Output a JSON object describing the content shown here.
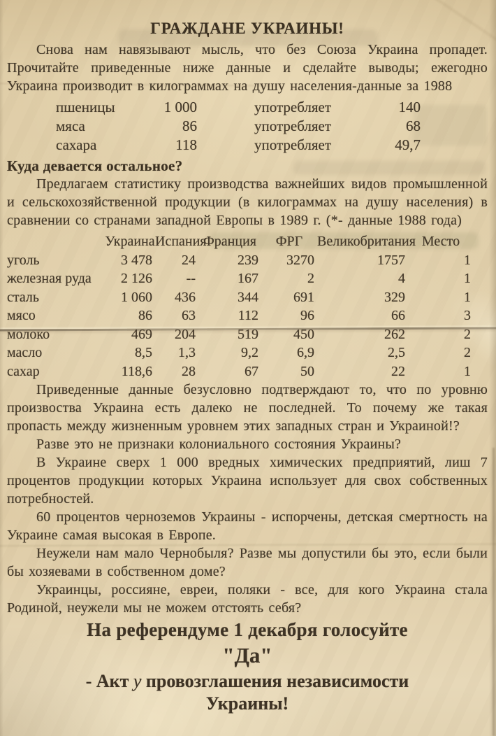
{
  "document": {
    "title": "ГРАЖДАНЕ УКРАИНЫ!",
    "intro": "Снова нам навязывают мысль, что без Союза Украина пропадет. Прочитайте приведенные ниже данные и сделайте выводы; ежегодно Украина производит в килограммах на душу населения-данные за 1988",
    "production_table": {
      "rows": [
        {
          "product": "пшеницы",
          "produced": "1 000",
          "verb": "употребляет",
          "consumed": "140"
        },
        {
          "product": "мяса",
          "produced": "86",
          "verb": "употребляет",
          "consumed": "68"
        },
        {
          "product": "сахара",
          "produced": "118",
          "verb": "употребляет",
          "consumed": "49,7"
        }
      ]
    },
    "section_heading": "Куда девается остальное?",
    "section_intro": "Предлагаем статистику производства важнейших видов промышленной и сельскохозяйственной продукции (в килограммах на душу населения) в сравнении со странами западной Европы в 1989 г. (*- данные 1988 года)",
    "comparison_table": {
      "columns": [
        "Украина",
        "Испания",
        "Франция",
        "ФРГ",
        "Великобритания",
        "Место"
      ],
      "rows": [
        {
          "label": "уголь",
          "values": [
            "3 478",
            "24",
            "239",
            "3270",
            "1757",
            "1"
          ]
        },
        {
          "label": "железная руда",
          "values": [
            "2 126",
            "--",
            "167",
            "2",
            "4",
            "1"
          ]
        },
        {
          "label": "сталь",
          "values": [
            "1 060",
            "436",
            "344",
            "691",
            "329",
            "1"
          ]
        },
        {
          "label": "мясо",
          "values": [
            "86",
            "63",
            "112",
            "96",
            "66",
            "3"
          ]
        },
        {
          "label": "молоко",
          "values": [
            "469",
            "204",
            "519",
            "450",
            "262",
            "2"
          ]
        },
        {
          "label": "масло",
          "values": [
            "8,5",
            "1,3",
            "9,2",
            "6,9",
            "2,5",
            "2"
          ]
        },
        {
          "label": "сахар",
          "values": [
            "118,6",
            "28",
            "67",
            "50",
            "22",
            "1"
          ]
        }
      ]
    },
    "paragraphs": [
      "Приведенные данные безусловно подтверждают то, что по уровню произвоства Украина есть далеко не последней.  То почему же такая пропасть между жизненным уровнем этих западных стран и Украиной!?",
      "Разве это не признаки колониального состояния Украины?",
      "В Украине сверх 1 000 вредных химических предприятий, лиш 7 процентов продукции которых Украина использует для свох собственных потребностей.",
      "60 процентов черноземов Украины - испорчены, детская смертность на Украине самая высокая в Европе.",
      "Неужели нам мало Чернобыля?  Разве мы допустили бы это, если были бы хозяевами в собственном доме?",
      "Украинцы, россияне, евреи, поляки - все, для кого Украина стала Родиной, неужели мы не можем отстоять себя?"
    ],
    "footer": {
      "line1": "На референдуме 1 декабря голосуйте",
      "line2": "\"Да\"",
      "line3_prefix": "- Акт",
      "line3_italic": "у",
      "line3_rest": "провозглашения независимости",
      "line4": "Украины!"
    },
    "colors": {
      "paper": "#e0cfa9",
      "ink": "#44392a"
    }
  }
}
